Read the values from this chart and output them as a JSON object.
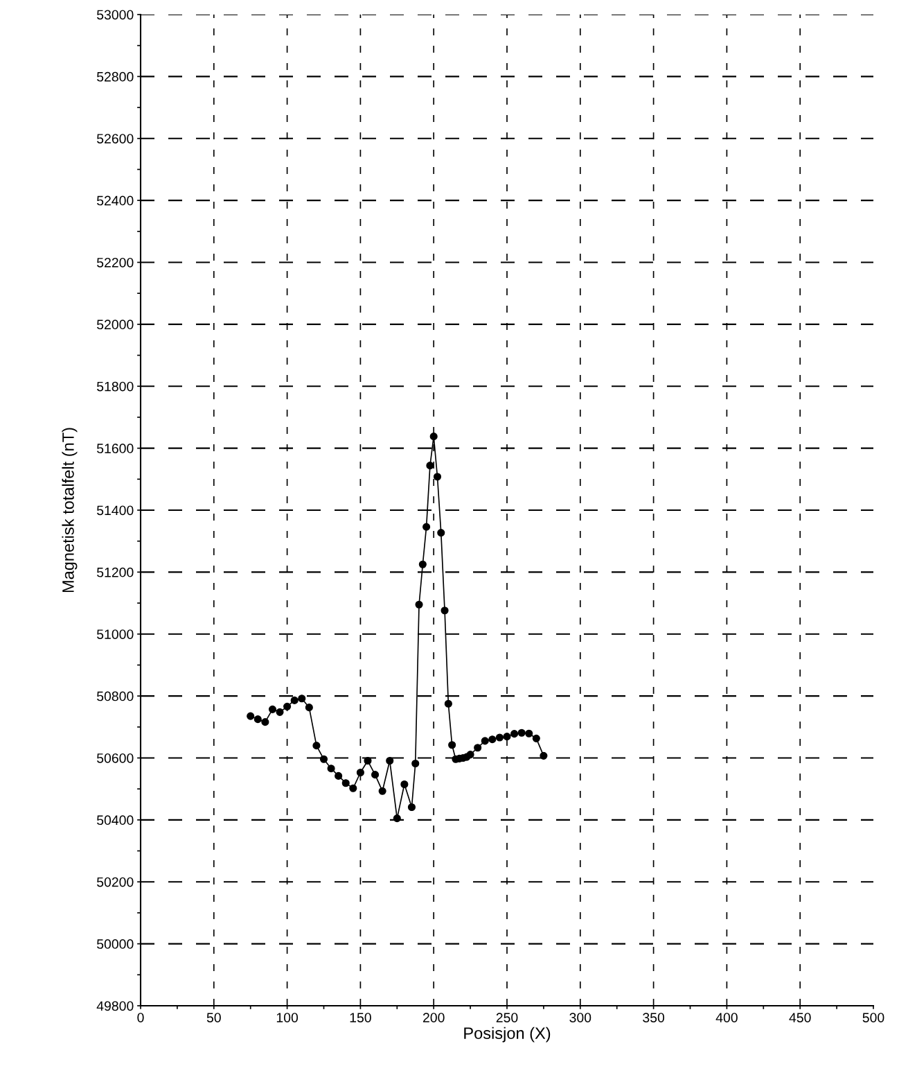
{
  "chart_data": {
    "type": "line",
    "xlabel": "Posisjon (X)",
    "ylabel": "Magnetisk totalfelt (nT)",
    "marker": "circle",
    "line_style": "solid",
    "grid": true,
    "xlim": [
      0,
      500
    ],
    "ylim": [
      49800,
      53000
    ],
    "xticks": [
      0,
      {
        "value": 25,
        "label": null
      },
      50,
      {
        "value": 75,
        "label": null
      },
      100,
      {
        "value": 125,
        "label": null
      },
      150,
      {
        "value": 175,
        "label": null
      },
      200,
      {
        "value": 225,
        "label": null
      },
      250,
      {
        "value": 275,
        "label": null
      },
      300,
      {
        "value": 325,
        "label": null
      },
      350,
      {
        "value": 375,
        "label": null
      },
      400,
      {
        "value": 425,
        "label": null
      },
      450,
      {
        "value": 475,
        "label": null
      },
      500
    ],
    "yticks": [
      49800,
      {
        "value": 49900,
        "label": null
      },
      50000,
      {
        "value": 50100,
        "label": null
      },
      50200,
      {
        "value": 50300,
        "label": null
      },
      50400,
      {
        "value": 50500,
        "label": null
      },
      50600,
      {
        "value": 50700,
        "label": null
      },
      50800,
      {
        "value": 50900,
        "label": null
      },
      51000,
      {
        "value": 51100,
        "label": null
      },
      51200,
      {
        "value": 51300,
        "label": null
      },
      51400,
      {
        "value": 51500,
        "label": null
      },
      51600,
      {
        "value": 51700,
        "label": null
      },
      51800,
      {
        "value": 51900,
        "label": null
      },
      52000,
      {
        "value": 52100,
        "label": null
      },
      52200,
      {
        "value": 52300,
        "label": null
      },
      52400,
      {
        "value": 52500,
        "label": null
      },
      52600,
      {
        "value": 52700,
        "label": null
      },
      52800,
      {
        "value": 52900,
        "label": null
      },
      53000
    ],
    "series": [
      {
        "color": "#000000",
        "x": [
          75,
          80,
          85,
          90,
          95,
          100,
          105,
          110,
          115,
          120,
          125,
          130,
          135,
          140,
          145,
          150,
          155,
          160,
          165,
          170,
          175,
          180,
          185,
          187.5,
          190,
          192.5,
          195,
          197.5,
          200,
          202.5,
          205,
          207.5,
          210,
          212.5,
          215,
          217.5,
          220,
          222.5,
          225,
          230,
          235,
          240,
          245,
          250,
          255,
          260,
          265,
          270,
          275
        ],
        "values": [
          50735,
          50725,
          50716,
          50757,
          50748,
          50766,
          50786,
          50792,
          50763,
          50640,
          50596,
          50566,
          50542,
          50519,
          50502,
          50553,
          50591,
          50546,
          50493,
          50591,
          50405,
          50515,
          50441,
          50582,
          51095,
          51225,
          51346,
          51544,
          51638,
          51508,
          51327,
          51076,
          50775,
          50642,
          50596,
          50598,
          50600,
          50603,
          50611,
          50633,
          50655,
          50660,
          50666,
          50669,
          50678,
          50681,
          50679,
          50663,
          50607
        ]
      }
    ]
  }
}
